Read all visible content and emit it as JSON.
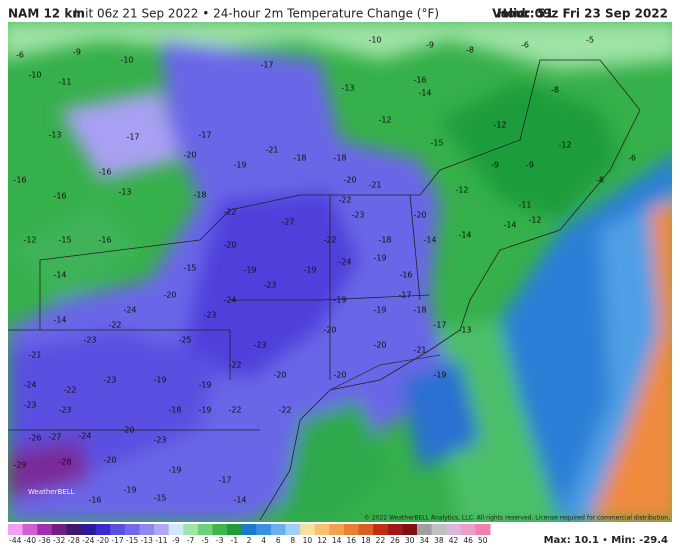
{
  "header": {
    "model": "NAM 12 km",
    "description": "Init 06z 21 Sep 2022 • 24-hour 2m Temperature Change (°F)",
    "hour_label": "Hour:",
    "hour": "51",
    "valid": "Valid: 09z Fri 23 Sep 2022"
  },
  "footer": {
    "copyright": "© 2022 WeatherBELL Analytics, LLC. All rights reserved. License required for commercial distribution.",
    "max": "Max: 10.1",
    "min": "Min: -29.4",
    "watermark": "WeatherBELL"
  },
  "colorbar": {
    "ticks": [
      -44,
      -40,
      -36,
      -32,
      -28,
      -24,
      -20,
      -17,
      -15,
      -13,
      -11,
      -9,
      -7,
      -5,
      -3,
      -1,
      2,
      4,
      6,
      8,
      10,
      12,
      14,
      16,
      18,
      22,
      26,
      30,
      34,
      38,
      42,
      46,
      50
    ]
  },
  "map_labels": [
    -6,
    -9,
    -10,
    -10,
    -11,
    -13,
    -17,
    -17,
    -17,
    -13,
    -16,
    -14,
    -10,
    -9,
    -8,
    -6,
    -5,
    -8,
    -12,
    -12,
    -12,
    -15,
    -12,
    -9,
    -9,
    -11,
    -12,
    -8,
    -6,
    -16,
    -13,
    -16,
    -16,
    -12,
    -15,
    -16,
    -20,
    -19,
    -21,
    -18,
    -18,
    -20,
    -21,
    -22,
    -18,
    -22,
    -27,
    -22,
    -23,
    -18,
    -20,
    -14,
    -14,
    -14,
    -20,
    -19,
    -23,
    -19,
    -24,
    -19,
    -16,
    -17,
    -14,
    -15,
    -20,
    -24,
    -23,
    -24,
    -22,
    -14,
    -19,
    -19,
    -18,
    -17,
    -21,
    -23,
    -25,
    -23,
    -20,
    -20,
    -21,
    -13,
    -19,
    -24,
    -22,
    -23,
    -19,
    -19,
    -22,
    -20,
    -20,
    -23,
    -23,
    -18,
    -19,
    -22,
    -22,
    -26,
    -27,
    -24,
    -20,
    -23,
    -29,
    -28,
    -20,
    -19,
    -17,
    -14,
    -16,
    -19,
    -15
  ]
}
